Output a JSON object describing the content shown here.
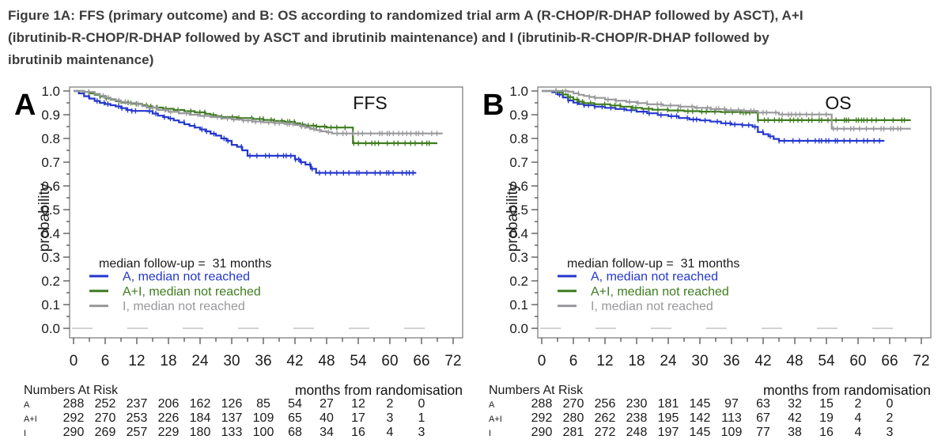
{
  "figure": {
    "title_lines": [
      "Figure 1A: FFS (primary outcome) and B: OS according to randomized trial arm A (R-CHOP/R-DHAP followed by ASCT), A+I",
      "(ibrutinib-R-CHOP/R-DHAP followed by ASCT and ibrutinib maintenance) and I (ibrutinib-R-CHOP/R-DHAP followed by",
      "ibrutinib maintenance)"
    ]
  },
  "colors": {
    "arm_a_blue": "#2437cd",
    "arm_ai_green": "#3e7c1f",
    "arm_i_gray": "#97989b",
    "title_text": "#3c3c3c",
    "axis_text": "#1c1c1c",
    "tick_stroke": "#444444",
    "box_border": "#808080",
    "zero_line": "#c4c4c4"
  },
  "chart_data": [
    {
      "type": "line",
      "subtype": "kaplan-meier",
      "panel_label": "A",
      "outcome_label": "FFS",
      "ylabel": "probability",
      "xlabel": "months from randomisation",
      "xlim": [
        0,
        72
      ],
      "ylim": [
        0.0,
        1.0
      ],
      "x_tick_step": 6,
      "x_minor_step": 3,
      "y_tick_step": 0.1,
      "y_minor_step": 0.05,
      "grid": false,
      "legend": {
        "title": "median follow-up =  31 months",
        "position": "inside-lower-left"
      },
      "series": [
        {
          "name": "A",
          "label": "A, median not reached",
          "color_key": "arm_a_blue",
          "points": [
            [
              0,
              1
            ],
            [
              1,
              0.99
            ],
            [
              2,
              0.978
            ],
            [
              3,
              0.968
            ],
            [
              4,
              0.958
            ],
            [
              5,
              0.95
            ],
            [
              6,
              0.945
            ],
            [
              7,
              0.94
            ],
            [
              8,
              0.935
            ],
            [
              9,
              0.928
            ],
            [
              10,
              0.92
            ],
            [
              11,
              0.916
            ],
            [
              14,
              0.915
            ],
            [
              15,
              0.905
            ],
            [
              16,
              0.896
            ],
            [
              17,
              0.89
            ],
            [
              18,
              0.884
            ],
            [
              19,
              0.876
            ],
            [
              20,
              0.868
            ],
            [
              21,
              0.86
            ],
            [
              22,
              0.853
            ],
            [
              23,
              0.846
            ],
            [
              24,
              0.838
            ],
            [
              25,
              0.83
            ],
            [
              26,
              0.82
            ],
            [
              27,
              0.812
            ],
            [
              28,
              0.8
            ],
            [
              29,
              0.79
            ],
            [
              30,
              0.773
            ],
            [
              31,
              0.765
            ],
            [
              32,
              0.75
            ],
            [
              33,
              0.727
            ],
            [
              41,
              0.727
            ],
            [
              42,
              0.712
            ],
            [
              43,
              0.7
            ],
            [
              44,
              0.69
            ],
            [
              45,
              0.672
            ],
            [
              46,
              0.655
            ],
            [
              65,
              0.655
            ]
          ]
        },
        {
          "name": "A+I",
          "label": "A+I, median not reached",
          "color_key": "arm_ai_green",
          "points": [
            [
              0,
              1
            ],
            [
              2,
              0.996
            ],
            [
              3,
              0.99
            ],
            [
              4,
              0.984
            ],
            [
              5,
              0.977
            ],
            [
              6,
              0.97
            ],
            [
              7,
              0.964
            ],
            [
              8,
              0.957
            ],
            [
              9,
              0.951
            ],
            [
              11,
              0.946
            ],
            [
              13,
              0.94
            ],
            [
              14,
              0.935
            ],
            [
              15,
              0.93
            ],
            [
              17,
              0.925
            ],
            [
              19,
              0.92
            ],
            [
              21,
              0.915
            ],
            [
              23,
              0.91
            ],
            [
              25,
              0.904
            ],
            [
              26,
              0.899
            ],
            [
              27,
              0.894
            ],
            [
              28,
              0.89
            ],
            [
              31,
              0.886
            ],
            [
              34,
              0.882
            ],
            [
              36,
              0.878
            ],
            [
              38,
              0.874
            ],
            [
              40,
              0.87
            ],
            [
              42,
              0.864
            ],
            [
              43,
              0.859
            ],
            [
              44,
              0.854
            ],
            [
              46,
              0.85
            ],
            [
              48,
              0.846
            ],
            [
              52,
              0.846
            ],
            [
              53,
              0.78
            ],
            [
              69,
              0.78
            ]
          ]
        },
        {
          "name": "I",
          "label": "I, median not reached",
          "color_key": "arm_i_gray",
          "points": [
            [
              0,
              1
            ],
            [
              2,
              0.996
            ],
            [
              4,
              0.988
            ],
            [
              5,
              0.98
            ],
            [
              6,
              0.972
            ],
            [
              7,
              0.966
            ],
            [
              8,
              0.96
            ],
            [
              9,
              0.954
            ],
            [
              10,
              0.949
            ],
            [
              12,
              0.944
            ],
            [
              13,
              0.936
            ],
            [
              14,
              0.93
            ],
            [
              16,
              0.92
            ],
            [
              18,
              0.912
            ],
            [
              20,
              0.906
            ],
            [
              22,
              0.9
            ],
            [
              24,
              0.895
            ],
            [
              26,
              0.89
            ],
            [
              28,
              0.885
            ],
            [
              30,
              0.88
            ],
            [
              32,
              0.876
            ],
            [
              34,
              0.871
            ],
            [
              36,
              0.868
            ],
            [
              38,
              0.865
            ],
            [
              40,
              0.861
            ],
            [
              42,
              0.857
            ],
            [
              43,
              0.851
            ],
            [
              44,
              0.846
            ],
            [
              45,
              0.84
            ],
            [
              46,
              0.835
            ],
            [
              47,
              0.83
            ],
            [
              48,
              0.826
            ],
            [
              49,
              0.821
            ],
            [
              70,
              0.821
            ]
          ]
        }
      ],
      "risk_table": {
        "title": "Numbers At Risk",
        "time_points": [
          0,
          6,
          12,
          18,
          24,
          30,
          36,
          42,
          48,
          54,
          60,
          66
        ],
        "rows": [
          {
            "arm": "A",
            "counts": [
              288,
              252,
              237,
              206,
              162,
              126,
              85,
              54,
              27,
              12,
              2,
              0
            ]
          },
          {
            "arm": "A+I",
            "counts": [
              292,
              270,
              253,
              226,
              184,
              137,
              109,
              65,
              40,
              17,
              3,
              1
            ]
          },
          {
            "arm": "I",
            "counts": [
              290,
              269,
              257,
              229,
              180,
              133,
              100,
              68,
              34,
              16,
              4,
              3
            ]
          }
        ]
      }
    },
    {
      "type": "line",
      "subtype": "kaplan-meier",
      "panel_label": "B",
      "outcome_label": "OS",
      "ylabel": "probability",
      "xlabel": "months from randomisation",
      "xlim": [
        0,
        72
      ],
      "ylim": [
        0.0,
        1.0
      ],
      "x_tick_step": 6,
      "x_minor_step": 3,
      "y_tick_step": 0.1,
      "y_minor_step": 0.05,
      "grid": false,
      "legend": {
        "title": "median follow-up =  31 months",
        "position": "inside-lower-left"
      },
      "series": [
        {
          "name": "A",
          "label": "A, median not reached",
          "color_key": "arm_a_blue",
          "points": [
            [
              0,
              1
            ],
            [
              2,
              0.995
            ],
            [
              3,
              0.985
            ],
            [
              4,
              0.973
            ],
            [
              5,
              0.96
            ],
            [
              6,
              0.951
            ],
            [
              7,
              0.945
            ],
            [
              8,
              0.94
            ],
            [
              10,
              0.934
            ],
            [
              12,
              0.929
            ],
            [
              14,
              0.924
            ],
            [
              16,
              0.919
            ],
            [
              18,
              0.913
            ],
            [
              20,
              0.906
            ],
            [
              22,
              0.899
            ],
            [
              24,
              0.894
            ],
            [
              26,
              0.886
            ],
            [
              28,
              0.88
            ],
            [
              30,
              0.876
            ],
            [
              32,
              0.871
            ],
            [
              34,
              0.864
            ],
            [
              36,
              0.859
            ],
            [
              38,
              0.856
            ],
            [
              40,
              0.849
            ],
            [
              41,
              0.827
            ],
            [
              42,
              0.818
            ],
            [
              43,
              0.809
            ],
            [
              44,
              0.798
            ],
            [
              45,
              0.79
            ],
            [
              65,
              0.79
            ]
          ]
        },
        {
          "name": "A+I",
          "label": "A+I, median not reached",
          "color_key": "arm_ai_green",
          "points": [
            [
              0,
              1
            ],
            [
              3,
              0.995
            ],
            [
              4,
              0.985
            ],
            [
              5,
              0.974
            ],
            [
              6,
              0.964
            ],
            [
              7,
              0.955
            ],
            [
              8,
              0.949
            ],
            [
              10,
              0.944
            ],
            [
              13,
              0.939
            ],
            [
              15,
              0.934
            ],
            [
              17,
              0.929
            ],
            [
              19,
              0.925
            ],
            [
              21,
              0.921
            ],
            [
              24,
              0.918
            ],
            [
              27,
              0.915
            ],
            [
              30,
              0.913
            ],
            [
              34,
              0.911
            ],
            [
              38,
              0.909
            ],
            [
              41,
              0.877
            ],
            [
              70,
              0.877
            ]
          ]
        },
        {
          "name": "I",
          "label": "I, median not reached",
          "color_key": "arm_i_gray",
          "points": [
            [
              0,
              1
            ],
            [
              5,
              0.997
            ],
            [
              6,
              0.99
            ],
            [
              7,
              0.984
            ],
            [
              8,
              0.979
            ],
            [
              9,
              0.975
            ],
            [
              10,
              0.971
            ],
            [
              12,
              0.964
            ],
            [
              14,
              0.959
            ],
            [
              16,
              0.954
            ],
            [
              18,
              0.949
            ],
            [
              20,
              0.944
            ],
            [
              23,
              0.939
            ],
            [
              26,
              0.934
            ],
            [
              29,
              0.929
            ],
            [
              32,
              0.924
            ],
            [
              35,
              0.919
            ],
            [
              38,
              0.916
            ],
            [
              41,
              0.909
            ],
            [
              45,
              0.901
            ],
            [
              54,
              0.901
            ],
            [
              55,
              0.841
            ],
            [
              70,
              0.841
            ]
          ]
        }
      ],
      "risk_table": {
        "title": "Numbers At Risk",
        "time_points": [
          0,
          6,
          12,
          18,
          24,
          30,
          36,
          42,
          48,
          54,
          60,
          66
        ],
        "rows": [
          {
            "arm": "A",
            "counts": [
              288,
              270,
              256,
              230,
              181,
              145,
              97,
              63,
              32,
              15,
              2,
              0
            ]
          },
          {
            "arm": "A+I",
            "counts": [
              292,
              280,
              262,
              238,
              195,
              142,
              113,
              67,
              42,
              19,
              4,
              2
            ]
          },
          {
            "arm": "I",
            "counts": [
              290,
              281,
              272,
              248,
              197,
              145,
              109,
              77,
              38,
              16,
              4,
              3
            ]
          }
        ]
      }
    }
  ]
}
